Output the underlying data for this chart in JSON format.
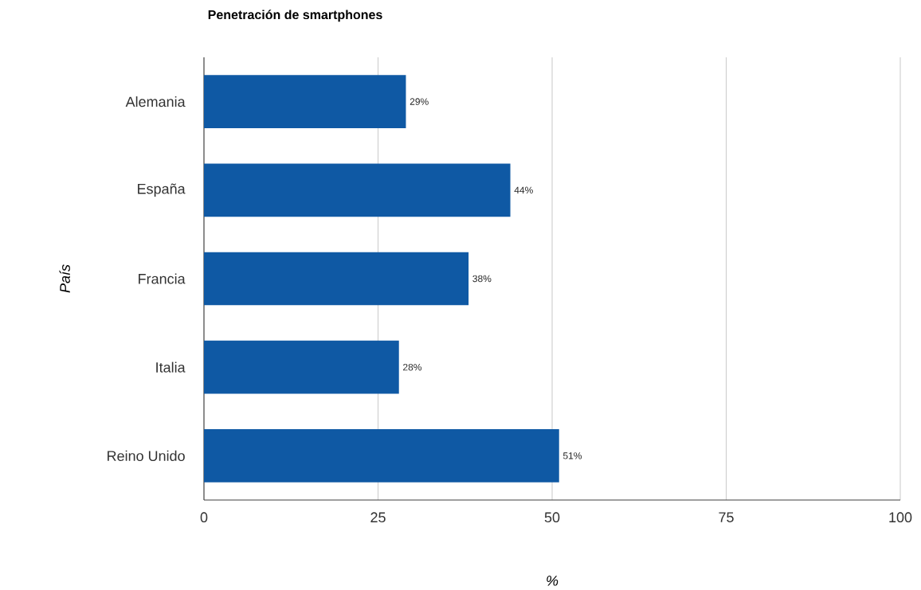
{
  "chart_data": {
    "type": "bar",
    "orientation": "horizontal",
    "title": "Penetración de smartphones",
    "xlabel": "%",
    "ylabel": "País",
    "categories": [
      "Alemania",
      "España",
      "Francia",
      "Italia",
      "Reino Unido"
    ],
    "values": [
      29,
      44,
      38,
      28,
      51
    ],
    "value_labels": [
      "29%",
      "44%",
      "38%",
      "28%",
      "51%"
    ],
    "color": "#0f59a4",
    "xlim": [
      0,
      100
    ],
    "xticks": [
      0,
      25,
      50,
      75,
      100
    ],
    "grid": "x"
  }
}
